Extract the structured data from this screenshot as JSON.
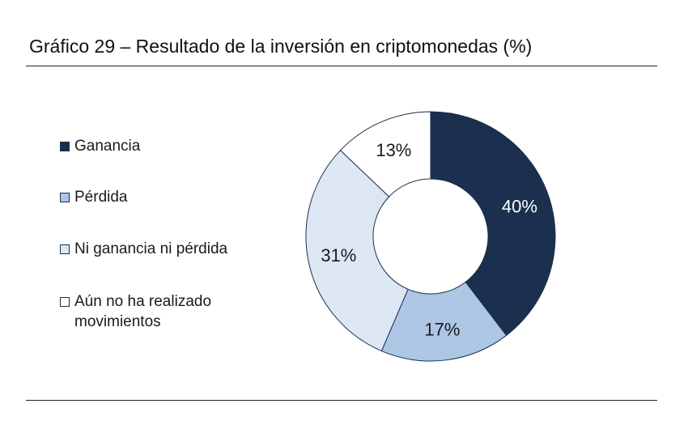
{
  "chart_data": {
    "type": "pie",
    "title": "Gráfico 29 – Resultado de la inversión en criptomonedas (%)",
    "categories": [
      "Ganancia",
      "Pérdida",
      "Ni ganancia ni pérdida",
      "Aún no ha realizado movimientos"
    ],
    "values": [
      40,
      17,
      31,
      13
    ],
    "labels": [
      "40%",
      "17%",
      "31%",
      "13%"
    ],
    "colors": [
      "#1b2f4e",
      "#adc6e4",
      "#dde7f4",
      "#ffffff"
    ],
    "label_colors": [
      "#ffffff",
      "#1a1a1a",
      "#1a1a1a",
      "#1a1a1a"
    ],
    "legend_placement": "left",
    "donut": true
  }
}
